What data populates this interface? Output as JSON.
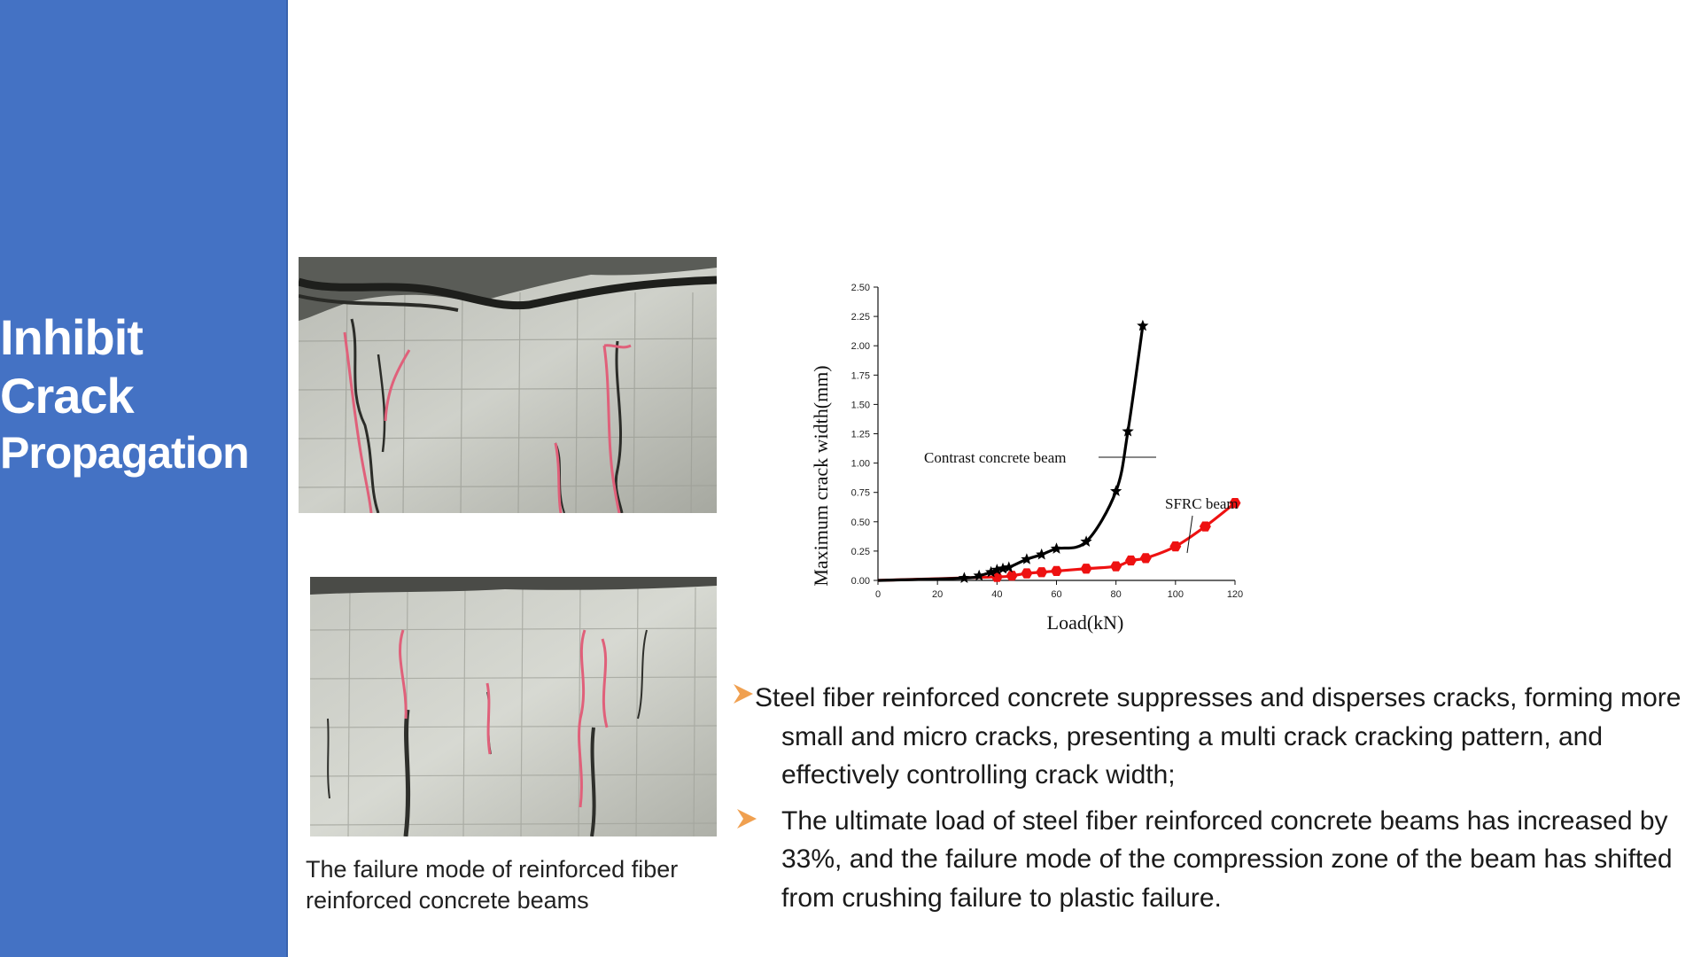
{
  "sidebar": {
    "title_lines": [
      "Inhibit",
      "Crack",
      "Propagation"
    ]
  },
  "photos": {
    "caption": "The failure mode of reinforced fiber reinforced concrete beams"
  },
  "colors": {
    "sidebar": "#4472c4",
    "contrast_series": "#000000",
    "sfrc_series": "#ee1111",
    "bullet_arrow": "#f0a050"
  },
  "chart_data": {
    "type": "line",
    "xlabel": "Load(kN)",
    "ylabel": "Maximum crack width(mm)",
    "xlim": [
      0,
      120
    ],
    "ylim": [
      0,
      2.5
    ],
    "x_ticks": [
      "0",
      "20",
      "40",
      "60",
      "80",
      "100",
      "120"
    ],
    "y_ticks": [
      "0.00",
      "0.25",
      "0.50",
      "0.75",
      "1.00",
      "1.25",
      "1.50",
      "1.75",
      "2.00",
      "2.25",
      "2.50"
    ],
    "series": [
      {
        "name": "Contrast concrete beam",
        "marker": "star",
        "color": "#000000",
        "x": [
          0,
          29,
          34,
          38,
          40,
          42,
          44,
          50,
          55,
          60,
          70,
          80,
          84,
          89
        ],
        "y": [
          0.0,
          0.02,
          0.04,
          0.07,
          0.09,
          0.1,
          0.11,
          0.18,
          0.22,
          0.27,
          0.33,
          0.76,
          1.27,
          2.17
        ]
      },
      {
        "name": "SFRC beam",
        "marker": "hexagon",
        "color": "#ee1111",
        "x": [
          0,
          40,
          45,
          50,
          55,
          60,
          70,
          80,
          85,
          90,
          100,
          110,
          120
        ],
        "y": [
          0.0,
          0.03,
          0.04,
          0.06,
          0.07,
          0.08,
          0.1,
          0.12,
          0.17,
          0.19,
          0.29,
          0.46,
          0.66
        ]
      }
    ],
    "annotations": [
      "Contrast concrete beam",
      "SFRC beam"
    ],
    "grid": false,
    "legend": "none"
  },
  "bullets": [
    "Steel fiber reinforced concrete suppresses and disperses cracks, forming more small and micro cracks, presenting a multi crack cracking pattern, and effectively controlling crack width;",
    "The ultimate load of steel fiber reinforced concrete beams has increased by 33%, and the failure mode of the compression zone of the beam has shifted from crushing failure to plastic failure."
  ]
}
